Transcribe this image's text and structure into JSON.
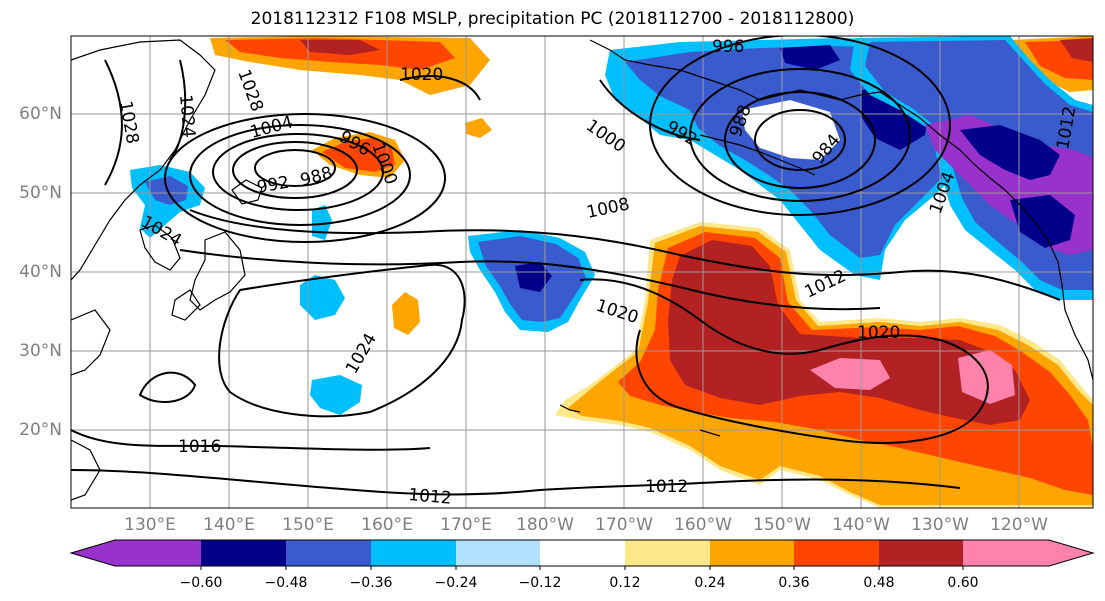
{
  "title": "2018112312 F108 MSLP, precipitation PC (2018112700 - 2018112800)",
  "lat_labels": [
    "60°N",
    "50°N",
    "40°N",
    "30°N",
    "20°N"
  ],
  "lon_labels": [
    "130°E",
    "140°E",
    "150°E",
    "160°E",
    "170°E",
    "180°W",
    "170°W",
    "160°W",
    "150°W",
    "140°W",
    "130°W",
    "120°W"
  ],
  "isobar_labels": [
    "1028",
    "1020",
    "1024",
    "1028",
    "1004",
    "996",
    "1000",
    "992",
    "988",
    "1024",
    "996",
    "1000",
    "992",
    "988",
    "984",
    "1008",
    "1004",
    "1012",
    "1020",
    "1024",
    "1020",
    "1016",
    "1012",
    "1012",
    "1012"
  ],
  "colorbar": {
    "tick_labels": [
      "−0.60",
      "−0.48",
      "−0.36",
      "−0.24",
      "−0.12",
      "0.12",
      "0.24",
      "0.36",
      "0.48",
      "0.60"
    ],
    "colors": [
      "#9932cc",
      "#00008b",
      "#3a5bcd",
      "#00bfff",
      "#b0e2ff",
      "#ffffff",
      "#ffe88a",
      "#ffa500",
      "#ff4500",
      "#b22222",
      "#ff82ab"
    ]
  },
  "map_colors": {
    "ocean": "#ffffff",
    "coast": "#000000",
    "isobar": "#000000",
    "grid": "#9a9a9a"
  }
}
